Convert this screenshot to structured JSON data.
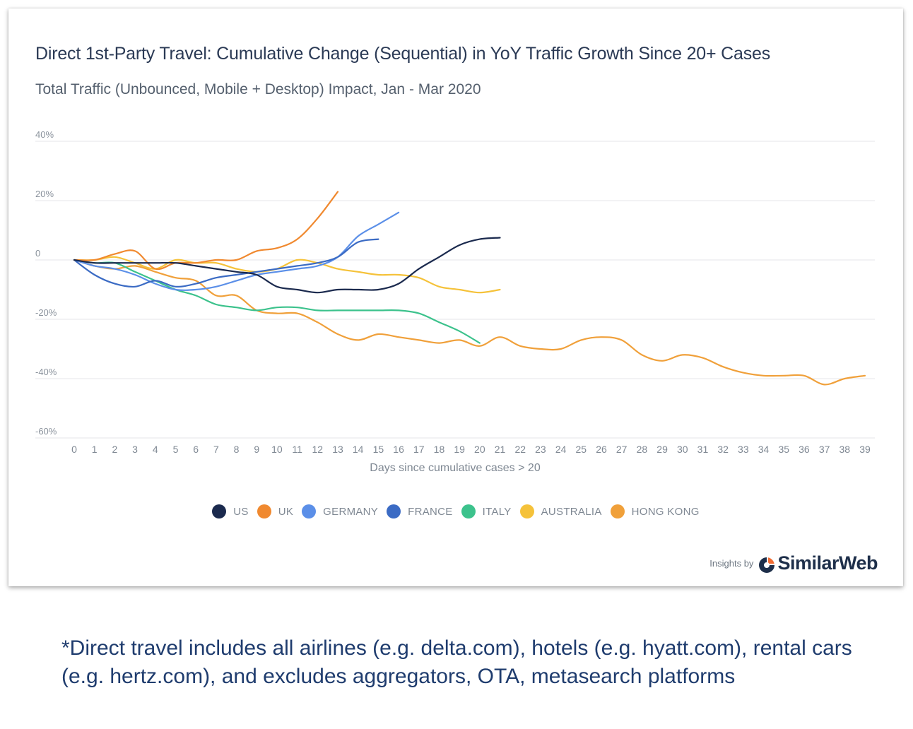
{
  "chart_data": {
    "type": "line",
    "title": "Direct 1st-Party Travel: Cumulative Change (Sequential) in YoY Traffic Growth Since 20+ Cases",
    "subtitle": "Total Traffic (Unbounced, Mobile + Desktop) Impact, Jan - Mar 2020",
    "xlabel": "Days since cumulative cases > 20",
    "ylabel": "",
    "xlim": [
      0,
      39
    ],
    "ylim": [
      -60,
      40
    ],
    "y_ticks": [
      40,
      20,
      0,
      -20,
      -40,
      -60
    ],
    "y_tick_labels": [
      "40%",
      "20%",
      "0",
      "-20%",
      "-40%",
      "-60%"
    ],
    "x_ticks": [
      0,
      1,
      2,
      3,
      4,
      5,
      6,
      7,
      8,
      9,
      10,
      11,
      12,
      13,
      14,
      15,
      16,
      17,
      18,
      19,
      20,
      21,
      22,
      23,
      24,
      25,
      26,
      27,
      28,
      29,
      30,
      31,
      32,
      33,
      34,
      35,
      36,
      37,
      38,
      39
    ],
    "grid": "horizontal",
    "legend_position": "bottom",
    "series": [
      {
        "name": "US",
        "color": "#1b2a4e",
        "x": [
          0,
          1,
          2,
          3,
          4,
          5,
          6,
          7,
          8,
          9,
          10,
          11,
          12,
          13,
          14,
          15,
          16,
          17,
          18,
          19,
          20,
          21
        ],
        "values": [
          0,
          -1,
          -1,
          -1,
          -1,
          -1,
          -2,
          -3,
          -4,
          -5,
          -9,
          -10,
          -11,
          -10,
          -10,
          -10,
          -8,
          -3,
          1,
          5,
          7,
          7.5
        ]
      },
      {
        "name": "UK",
        "color": "#f0892f",
        "x": [
          0,
          1,
          2,
          3,
          4,
          5,
          6,
          7,
          8,
          9,
          10,
          11,
          12,
          13
        ],
        "values": [
          0,
          0,
          2,
          3,
          -3,
          -1,
          -1,
          0,
          0,
          3,
          4,
          7,
          14,
          23
        ]
      },
      {
        "name": "GERMANY",
        "color": "#5b8fe8",
        "x": [
          0,
          1,
          2,
          3,
          4,
          5,
          6,
          7,
          8,
          9,
          10,
          11,
          12,
          13,
          14,
          15,
          16
        ],
        "values": [
          0,
          -2,
          -3,
          -5,
          -8,
          -10,
          -10,
          -9,
          -7,
          -5,
          -4,
          -3,
          -2,
          1,
          8,
          12,
          16
        ]
      },
      {
        "name": "FRANCE",
        "color": "#3b6bc4",
        "x": [
          0,
          1,
          2,
          3,
          4,
          5,
          6,
          7,
          8,
          9,
          10,
          11,
          12,
          13,
          14,
          15
        ],
        "values": [
          0,
          -5,
          -8,
          -9,
          -7,
          -9,
          -8,
          -6,
          -5,
          -4,
          -3,
          -2,
          -1,
          1,
          6,
          7
        ]
      },
      {
        "name": "ITALY",
        "color": "#3cc28c",
        "x": [
          0,
          1,
          2,
          3,
          4,
          5,
          6,
          7,
          8,
          9,
          10,
          11,
          12,
          13,
          14,
          15,
          16,
          17,
          18,
          19,
          20
        ],
        "values": [
          0,
          -1,
          -1,
          -4,
          -7,
          -10,
          -12,
          -15,
          -16,
          -17,
          -16,
          -16,
          -17,
          -17,
          -17,
          -17,
          -17,
          -18,
          -21,
          -24,
          -28
        ]
      },
      {
        "name": "AUSTRALIA",
        "color": "#f5c23a",
        "x": [
          0,
          1,
          2,
          3,
          4,
          5,
          6,
          7,
          8,
          9,
          10,
          11,
          12,
          13,
          14,
          15,
          16,
          17,
          18,
          19,
          20,
          21
        ],
        "values": [
          0,
          0,
          1,
          -1,
          -3,
          0,
          -1,
          -1,
          -3,
          -4,
          -3,
          0,
          -1,
          -3,
          -4,
          -5,
          -5,
          -6,
          -9,
          -10,
          -11,
          -10
        ]
      },
      {
        "name": "HONG KONG",
        "color": "#f0a03a",
        "x": [
          0,
          1,
          2,
          3,
          4,
          5,
          6,
          7,
          8,
          9,
          10,
          11,
          12,
          13,
          14,
          15,
          16,
          17,
          18,
          19,
          20,
          21,
          22,
          23,
          24,
          25,
          26,
          27,
          28,
          29,
          30,
          31,
          32,
          33,
          34,
          35,
          36,
          37,
          38,
          39
        ],
        "values": [
          0,
          -2,
          -3,
          -2,
          -4,
          -6,
          -7,
          -12,
          -12,
          -17,
          -18,
          -18,
          -21,
          -25,
          -27,
          -25,
          -26,
          -27,
          -28,
          -27,
          -29,
          -26,
          -29,
          -30,
          -30,
          -27,
          -26,
          -27,
          -32,
          -34,
          -32,
          -33,
          -36,
          -38,
          -39,
          -39,
          -39,
          -42,
          -40,
          -39
        ]
      }
    ]
  },
  "brand": {
    "prefix": "Insights by",
    "name": "SimilarWeb"
  },
  "footnote": "*Direct travel includes all airlines (e.g. delta.com), hotels (e.g. hyatt.com), rental cars (e.g. hertz.com), and excludes aggregators, OTA, metasearch platforms"
}
